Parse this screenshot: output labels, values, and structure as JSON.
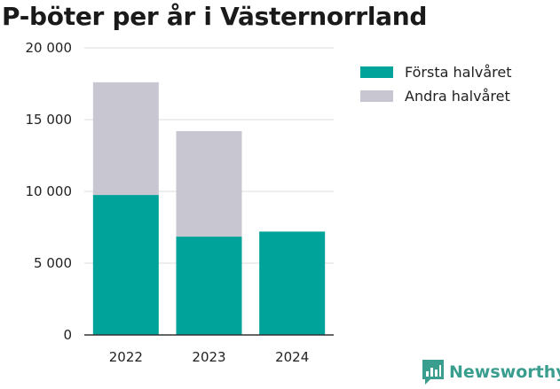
{
  "title": "P-böter per år i Västernorrland",
  "brand": {
    "name": "Newsworthy",
    "icon": "newsworthy-logo-icon",
    "color": "#3a9e8f"
  },
  "colors": {
    "first_half": "#00a39a",
    "second_half": "#c8c7d1",
    "axis": "#333333",
    "grid": "#dddddd"
  },
  "chart_data": {
    "type": "bar",
    "stacked": true,
    "title": "P-böter per år i Västernorrland",
    "categories": [
      "2022",
      "2023",
      "2024"
    ],
    "series": [
      {
        "name": "Första halvåret",
        "values": [
          9750,
          6850,
          7200
        ]
      },
      {
        "name": "Andra halvåret",
        "values": [
          7850,
          7350,
          null
        ]
      }
    ],
    "ylim": [
      0,
      20000
    ],
    "yticks": [
      0,
      5000,
      10000,
      15000,
      20000
    ],
    "ytick_labels": [
      "0",
      "5 000",
      "10 000",
      "15 000",
      "20 000"
    ],
    "grid": true,
    "legend_position": "right"
  }
}
